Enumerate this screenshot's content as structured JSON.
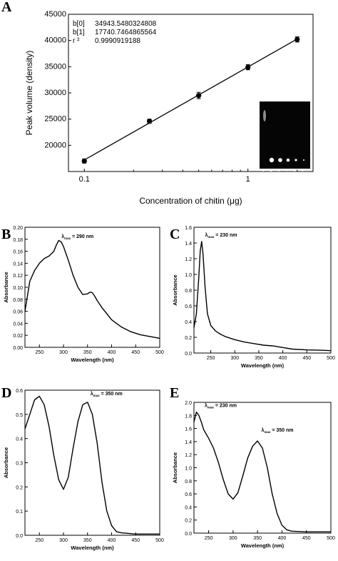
{
  "panel_labels": [
    "A",
    "B",
    "C",
    "D",
    "E"
  ],
  "chart_data": [
    {
      "panel": "A",
      "type": "scatter",
      "xlabel": "Concentration of chitin (μg)",
      "ylabel": "Peak volume (density)",
      "xscale": "log",
      "xlim": [
        0.08,
        2.5
      ],
      "ylim": [
        15000,
        45000
      ],
      "x_ticks": [
        0.1,
        1
      ],
      "x_tick_labels": [
        "0.1",
        "1"
      ],
      "y_ticks": [
        20000,
        25000,
        30000,
        35000,
        40000,
        45000
      ],
      "regression": {
        "b0_label": "b[0]",
        "b0_value": "34943.5480324808",
        "b1_label": "b[1]",
        "b1_value": "17740.7464865564",
        "r2_label": "r ²",
        "r2_value": "0.9990919188"
      },
      "points": [
        {
          "x": 0.1,
          "y": 17000,
          "err": 400
        },
        {
          "x": 0.25,
          "y": 24600,
          "err": 400
        },
        {
          "x": 0.5,
          "y": 29500,
          "err": 600
        },
        {
          "x": 1.0,
          "y": 34900,
          "err": 500
        },
        {
          "x": 2.0,
          "y": 40200,
          "err": 500
        }
      ],
      "fit_line": {
        "x": [
          0.1,
          2.0
        ]
      },
      "inset": {
        "lane_labels": [
          "1",
          "2",
          "3",
          "4",
          "5",
          "6"
        ]
      }
    },
    {
      "panel": "B",
      "type": "line",
      "xlabel": "Wavelength (nm)",
      "ylabel": "Absorbance",
      "xlim": [
        220,
        500
      ],
      "ylim": [
        0,
        0.2
      ],
      "x_ticks": [
        250,
        300,
        350,
        400,
        450,
        500
      ],
      "y_ticks": [
        0.0,
        0.02,
        0.04,
        0.06,
        0.08,
        0.1,
        0.12,
        0.14,
        0.16,
        0.18,
        0.2
      ],
      "y_tick_labels": [
        "0.00",
        "0.02",
        "0.04",
        "0.06",
        "0.08",
        "0.10",
        "0.12",
        "0.14",
        "0.16",
        "0.18",
        "0.20"
      ],
      "annotations": [
        {
          "prefix": "λ",
          "sub": "max",
          "text": " = 290 nm",
          "x": 290,
          "y": 0.182
        }
      ],
      "x": [
        220,
        230,
        240,
        250,
        260,
        270,
        280,
        285,
        290,
        295,
        300,
        310,
        320,
        330,
        340,
        350,
        355,
        360,
        365,
        370,
        380,
        390,
        400,
        420,
        440,
        460,
        480,
        500
      ],
      "y": [
        0.06,
        0.11,
        0.128,
        0.14,
        0.148,
        0.152,
        0.16,
        0.17,
        0.178,
        0.176,
        0.168,
        0.145,
        0.12,
        0.1,
        0.088,
        0.089,
        0.092,
        0.091,
        0.085,
        0.078,
        0.066,
        0.056,
        0.046,
        0.034,
        0.026,
        0.021,
        0.018,
        0.015
      ]
    },
    {
      "panel": "C",
      "type": "line",
      "xlabel": "Wavelength (nm)",
      "ylabel": "Absorbance",
      "xlim": [
        215,
        500
      ],
      "ylim": [
        0,
        1.6
      ],
      "x_ticks": [
        250,
        300,
        350,
        400,
        450,
        500
      ],
      "y_ticks": [
        0.0,
        0.2,
        0.4,
        0.6,
        0.8,
        1.0,
        1.2,
        1.4,
        1.6
      ],
      "y_tick_labels": [
        "0.0",
        "0.2",
        "0.4",
        "0.6",
        "0.8",
        "1.0",
        "1.2",
        "1.4",
        "1.6"
      ],
      "annotations": [
        {
          "prefix": "λ",
          "sub": "max",
          "text": " = 230 nm",
          "x": 232,
          "y": 1.48
        }
      ],
      "x": [
        215,
        220,
        225,
        228,
        231,
        234,
        238,
        243,
        250,
        260,
        270,
        280,
        300,
        320,
        340,
        360,
        380,
        400,
        420,
        450,
        480,
        500
      ],
      "y": [
        0.32,
        0.5,
        0.95,
        1.3,
        1.42,
        1.25,
        0.85,
        0.5,
        0.35,
        0.28,
        0.24,
        0.21,
        0.17,
        0.14,
        0.12,
        0.1,
        0.09,
        0.07,
        0.05,
        0.04,
        0.035,
        0.03
      ]
    },
    {
      "panel": "D",
      "type": "line",
      "xlabel": "Wavelength (nm)",
      "ylabel": "Absorbance",
      "xlim": [
        220,
        500
      ],
      "ylim": [
        0,
        0.6
      ],
      "x_ticks": [
        250,
        300,
        350,
        400,
        450,
        500
      ],
      "y_ticks": [
        0.0,
        0.1,
        0.2,
        0.3,
        0.4,
        0.5,
        0.6
      ],
      "y_tick_labels": [
        "0.0",
        "0.1",
        "0.2",
        "0.3",
        "0.4",
        "0.5",
        "0.6"
      ],
      "annotations": [
        {
          "prefix": "λ",
          "sub": "max",
          "text": " = 350 nm",
          "x": 350,
          "y": 0.58
        }
      ],
      "x": [
        220,
        230,
        240,
        250,
        260,
        270,
        280,
        290,
        300,
        310,
        320,
        330,
        340,
        350,
        360,
        370,
        380,
        390,
        400,
        410,
        420,
        450,
        500
      ],
      "y": [
        0.44,
        0.5,
        0.56,
        0.575,
        0.54,
        0.45,
        0.33,
        0.23,
        0.19,
        0.24,
        0.36,
        0.47,
        0.54,
        0.55,
        0.5,
        0.38,
        0.22,
        0.1,
        0.04,
        0.015,
        0.01,
        0.005,
        0.005
      ]
    },
    {
      "panel": "E",
      "type": "line",
      "xlabel": "Wavelength (nm)",
      "ylabel": "Absorbance",
      "xlim": [
        220,
        500
      ],
      "ylim": [
        0,
        2.0
      ],
      "x_ticks": [
        250,
        300,
        350,
        400,
        450,
        500
      ],
      "y_ticks": [
        0.0,
        0.2,
        0.4,
        0.6,
        0.8,
        1.0,
        1.2,
        1.4,
        1.6,
        1.8,
        2.0
      ],
      "y_tick_labels": [
        "0.0",
        "0.2",
        "0.4",
        "0.6",
        "0.8",
        "1.0",
        "1.2",
        "1.4",
        "1.6",
        "1.8",
        "2.0"
      ],
      "annotations": [
        {
          "prefix": "λ",
          "sub": "max",
          "text": " = 230 nm",
          "x": 236,
          "y": 1.93
        },
        {
          "prefix": "λ",
          "sub": "max",
          "text": " = 350 nm",
          "x": 352,
          "y": 1.55
        }
      ],
      "x": [
        220,
        225,
        230,
        235,
        240,
        250,
        260,
        270,
        280,
        290,
        300,
        310,
        320,
        330,
        340,
        350,
        360,
        370,
        380,
        390,
        400,
        410,
        420,
        450,
        500
      ],
      "y": [
        1.7,
        1.85,
        1.8,
        1.7,
        1.58,
        1.45,
        1.3,
        1.08,
        0.82,
        0.6,
        0.52,
        0.62,
        0.88,
        1.15,
        1.33,
        1.41,
        1.3,
        1.0,
        0.6,
        0.3,
        0.12,
        0.05,
        0.03,
        0.02,
        0.02
      ]
    }
  ]
}
